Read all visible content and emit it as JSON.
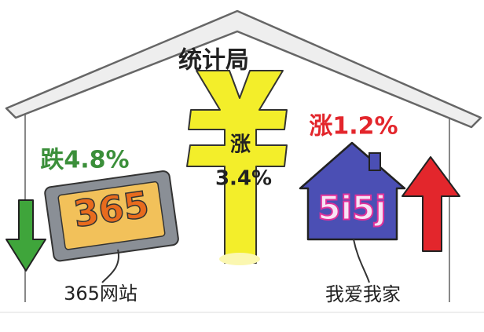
{
  "header": {
    "title": "统计局"
  },
  "center": {
    "label": "涨",
    "value": "3.4%"
  },
  "left": {
    "change": "跌4.8%",
    "logo": "365",
    "name": "365网站"
  },
  "right": {
    "change": "涨1.2%",
    "logo": "5i5j",
    "name": "我爱我家"
  }
}
